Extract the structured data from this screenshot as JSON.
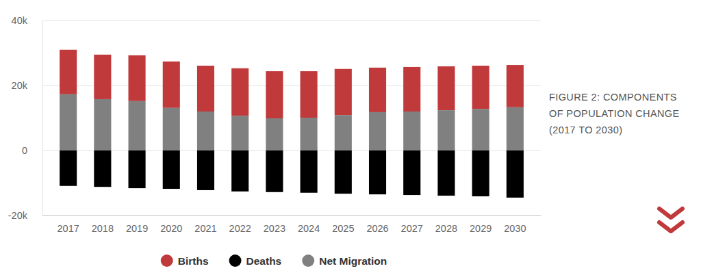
{
  "chart_data": {
    "type": "bar",
    "title": "FIGURE 2: COMPONENTS OF POPULATION CHANGE (2017 TO 2030)",
    "categories": [
      "2017",
      "2018",
      "2019",
      "2020",
      "2021",
      "2022",
      "2023",
      "2024",
      "2025",
      "2026",
      "2027",
      "2028",
      "2029",
      "2030"
    ],
    "series": [
      {
        "name": "Births",
        "color": "#c0393b",
        "values": [
          13700,
          13700,
          14100,
          14300,
          14100,
          14600,
          14500,
          14300,
          14200,
          13700,
          13700,
          13500,
          13300,
          13000
        ]
      },
      {
        "name": "Deaths",
        "color": "#000000",
        "values": [
          -10900,
          -11200,
          -11600,
          -11800,
          -12200,
          -12600,
          -12800,
          -13000,
          -13300,
          -13500,
          -13700,
          -13900,
          -14100,
          -14500
        ]
      },
      {
        "name": "Net Migration",
        "color": "#808080",
        "values": [
          17300,
          15800,
          15200,
          13100,
          12000,
          10700,
          9900,
          10100,
          10900,
          11800,
          12000,
          12400,
          12800,
          13300
        ]
      }
    ],
    "ylim": [
      -20000,
      40000
    ],
    "yticks": [
      {
        "value": -20000,
        "label": "-20k"
      },
      0,
      {
        "value": 20000,
        "label": "20k"
      },
      {
        "value": 40000,
        "label": "40k"
      }
    ],
    "grid": true,
    "stacked": true,
    "legend": "bottom"
  }
}
